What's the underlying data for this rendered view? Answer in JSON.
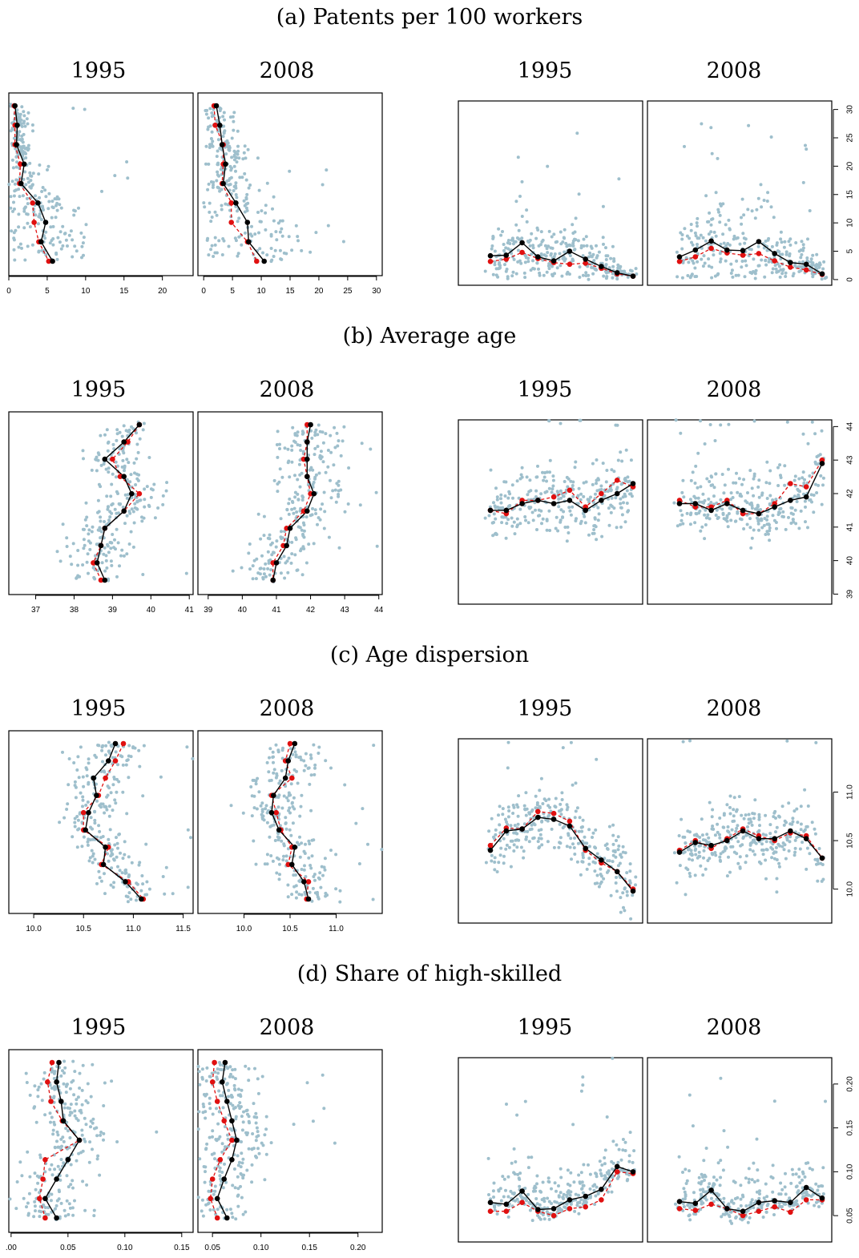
{
  "colors": {
    "points": "#9ebfcc",
    "mean": "#000000",
    "median": "#e01010"
  },
  "figure": {
    "sections": [
      {
        "title": "(a) Patents per 100 workers",
        "years": [
          "1995",
          "2008"
        ],
        "left_ticks": [
          [
            "0",
            "5",
            "10",
            "15",
            "20"
          ],
          [
            "0",
            "5",
            "10",
            "15",
            "20",
            "25",
            "30"
          ]
        ],
        "right_ticks": [
          "0",
          "5",
          "10",
          "15",
          "20",
          "25",
          "30"
        ]
      },
      {
        "title": "(b) Average age",
        "years": [
          "1995",
          "2008"
        ],
        "left_ticks": [
          [
            "37",
            "38",
            "39",
            "40",
            "41"
          ],
          [
            "39",
            "40",
            "41",
            "42",
            "43",
            "44"
          ]
        ],
        "right_ticks": [
          "39",
          "40",
          "41",
          "42",
          "43",
          "44"
        ]
      },
      {
        "title": "(c) Age dispersion",
        "years": [
          "1995",
          "2008"
        ],
        "left_ticks": [
          [
            "10.0",
            "10.5",
            "11.0",
            "11.5"
          ],
          [
            "10.0",
            "10.5",
            "11.0"
          ]
        ],
        "right_ticks": [
          "10.0",
          "10.5",
          "11.0"
        ]
      },
      {
        "title": "(d) Share of high-skilled",
        "years": [
          "1995",
          "2008"
        ],
        "left_ticks": [
          [
            ".00",
            "0.05",
            "0.10",
            "0.15"
          ],
          [
            "0.05",
            "0.10",
            "0.15",
            "0.20"
          ]
        ],
        "right_ticks": [
          "0.05",
          "0.10",
          "0.15",
          "0.20"
        ]
      }
    ]
  },
  "chart_data": [
    {
      "type": "scatter",
      "panel": "(a) left 1995",
      "xlim": [
        0,
        24
      ],
      "mean": [
        0.8,
        1.1,
        1.0,
        2.0,
        1.6,
        3.8,
        4.8,
        4.2,
        5.7
      ],
      "median": [
        0.7,
        0.8,
        0.8,
        1.5,
        1.4,
        3.1,
        3.3,
        3.9,
        5.2
      ]
    },
    {
      "type": "scatter",
      "panel": "(a) left 2008",
      "xlim": [
        -1,
        31
      ],
      "mean": [
        2.2,
        2.8,
        3.2,
        3.8,
        3.4,
        5.6,
        7.6,
        7.8,
        10.5
      ],
      "median": [
        1.8,
        2.0,
        3.4,
        3.4,
        3.2,
        4.8,
        4.8,
        7.6,
        9.2
      ]
    },
    {
      "type": "scatter",
      "panel": "(b) left 1995",
      "xlim": [
        36.3,
        41.1
      ],
      "mean": [
        39.7,
        39.3,
        38.8,
        39.3,
        39.5,
        39.3,
        38.8,
        38.7,
        38.6,
        38.8
      ],
      "median": [
        39.7,
        39.4,
        39.0,
        39.2,
        39.7,
        39.3,
        38.8,
        38.7,
        38.5,
        38.7
      ]
    },
    {
      "type": "scatter",
      "panel": "(b) left 2008",
      "xlim": [
        38.7,
        44.1
      ],
      "mean": [
        42.0,
        41.9,
        41.9,
        41.9,
        42.1,
        41.9,
        41.4,
        41.3,
        41.0,
        40.9
      ],
      "median": [
        41.9,
        41.9,
        41.8,
        41.9,
        42.0,
        41.8,
        41.3,
        41.2,
        40.9,
        40.9
      ]
    },
    {
      "type": "scatter",
      "panel": "(c) left 1995",
      "xlim": [
        9.75,
        11.6
      ],
      "mean": [
        10.82,
        10.75,
        10.6,
        10.63,
        10.55,
        10.52,
        10.72,
        10.7,
        10.92,
        11.08
      ],
      "median": [
        10.9,
        10.82,
        10.72,
        10.65,
        10.5,
        10.5,
        10.75,
        10.68,
        10.95,
        11.1
      ]
    },
    {
      "type": "scatter",
      "panel": "(c) left 2008",
      "xlim": [
        9.5,
        11.5
      ],
      "mean": [
        10.55,
        10.48,
        10.45,
        10.32,
        10.3,
        10.38,
        10.55,
        10.52,
        10.65,
        10.7
      ],
      "median": [
        10.5,
        10.45,
        10.52,
        10.3,
        10.35,
        10.4,
        10.52,
        10.48,
        10.7,
        10.68
      ]
    },
    {
      "type": "scatter",
      "panel": "(d) left 1995",
      "xlim": [
        -0.002,
        0.16
      ],
      "mean": [
        0.042,
        0.04,
        0.044,
        0.046,
        0.06,
        0.05,
        0.04,
        0.03,
        0.04
      ],
      "median": [
        0.036,
        0.032,
        0.035,
        0.045,
        0.06,
        0.03,
        0.028,
        0.025,
        0.03
      ]
    },
    {
      "type": "scatter",
      "panel": "(d) left 2008",
      "xlim": [
        0.035,
        0.225
      ],
      "mean": [
        0.063,
        0.06,
        0.065,
        0.07,
        0.075,
        0.07,
        0.062,
        0.055,
        0.065
      ],
      "median": [
        0.052,
        0.05,
        0.055,
        0.062,
        0.07,
        0.058,
        0.05,
        0.048,
        0.055
      ]
    },
    {
      "type": "scatter",
      "panel": "(a) right 1995",
      "ylim": [
        -1,
        31.5
      ],
      "mean": [
        4.2,
        4.3,
        6.5,
        4.0,
        3.3,
        5.0,
        3.6,
        2.3,
        1.2,
        0.6
      ],
      "median": [
        3.2,
        3.6,
        4.8,
        3.7,
        3.0,
        2.7,
        2.9,
        2.0,
        1.0,
        0.6
      ]
    },
    {
      "type": "scatter",
      "panel": "(a) right 2008",
      "ylim": [
        -1,
        31.5
      ],
      "mean": [
        4.0,
        5.2,
        6.8,
        5.2,
        5.1,
        6.7,
        4.6,
        3.0,
        2.7,
        1.0
      ],
      "median": [
        3.2,
        4.0,
        5.5,
        4.7,
        4.3,
        4.6,
        3.3,
        2.2,
        1.7,
        0.9
      ]
    },
    {
      "type": "scatter",
      "panel": "(b) right 1995",
      "ylim": [
        38.7,
        44.2
      ],
      "mean": [
        41.5,
        41.5,
        41.7,
        41.8,
        41.7,
        41.8,
        41.5,
        41.8,
        42.0,
        42.3
      ],
      "median": [
        41.5,
        41.4,
        41.8,
        41.8,
        41.9,
        42.1,
        41.6,
        42.0,
        42.4,
        42.2
      ]
    },
    {
      "type": "scatter",
      "panel": "(b) right 2008",
      "ylim": [
        38.7,
        44.2
      ],
      "mean": [
        41.7,
        41.7,
        41.5,
        41.7,
        41.5,
        41.4,
        41.6,
        41.8,
        41.9,
        42.9
      ],
      "median": [
        41.8,
        41.6,
        41.6,
        41.8,
        41.4,
        41.4,
        41.7,
        42.3,
        42.2,
        43.0
      ]
    },
    {
      "type": "scatter",
      "panel": "(c) right 1995",
      "ylim": [
        9.65,
        11.55
      ],
      "mean": [
        10.4,
        10.6,
        10.62,
        10.74,
        10.72,
        10.65,
        10.42,
        10.3,
        10.18,
        9.98
      ],
      "median": [
        10.45,
        10.63,
        10.62,
        10.8,
        10.78,
        10.7,
        10.4,
        10.27,
        10.18,
        10.0
      ]
    },
    {
      "type": "scatter",
      "panel": "(c) right 2008",
      "ylim": [
        9.65,
        11.55
      ],
      "mean": [
        10.38,
        10.48,
        10.45,
        10.5,
        10.6,
        10.52,
        10.52,
        10.6,
        10.52,
        10.32
      ],
      "median": [
        10.4,
        10.5,
        10.42,
        10.52,
        10.62,
        10.55,
        10.5,
        10.58,
        10.55,
        10.32
      ]
    },
    {
      "type": "scatter",
      "panel": "(d) right 1995",
      "ylim": [
        0.02,
        0.23
      ],
      "mean": [
        0.065,
        0.063,
        0.078,
        0.057,
        0.058,
        0.068,
        0.072,
        0.08,
        0.106,
        0.1
      ],
      "median": [
        0.055,
        0.055,
        0.065,
        0.055,
        0.05,
        0.058,
        0.06,
        0.068,
        0.1,
        0.098
      ]
    },
    {
      "type": "scatter",
      "panel": "(d) right 2008",
      "ylim": [
        0.02,
        0.23
      ],
      "mean": [
        0.066,
        0.064,
        0.079,
        0.058,
        0.055,
        0.065,
        0.067,
        0.065,
        0.082,
        0.07
      ],
      "median": [
        0.058,
        0.056,
        0.063,
        0.058,
        0.05,
        0.055,
        0.06,
        0.054,
        0.068,
        0.068
      ]
    }
  ]
}
